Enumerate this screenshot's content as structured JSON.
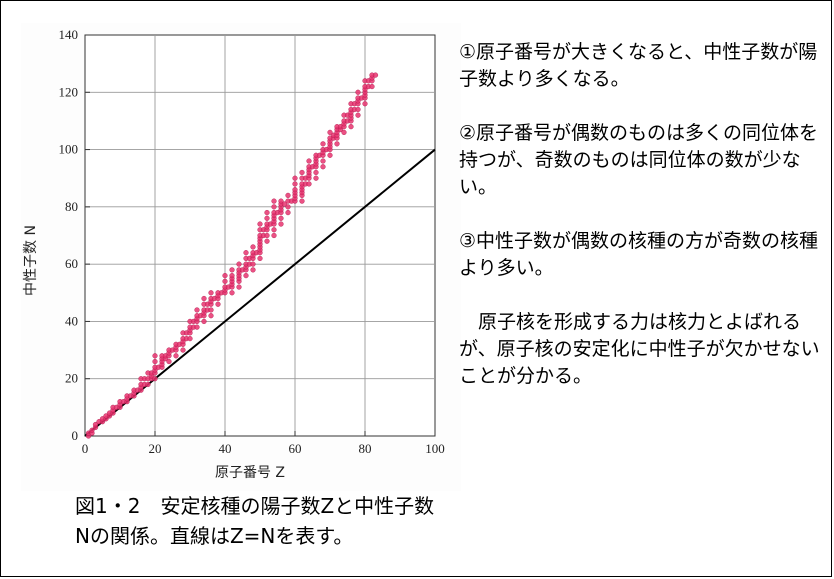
{
  "chart_data": {
    "type": "scatter",
    "xlabel": "原子番号 Z",
    "ylabel": "中性子数 N",
    "xlim": [
      0,
      100
    ],
    "ylim": [
      0,
      140
    ],
    "x_ticks": [
      0,
      20,
      40,
      60,
      80,
      100
    ],
    "y_ticks": [
      0,
      20,
      40,
      60,
      80,
      100,
      120,
      140
    ],
    "grid": true,
    "reference_line": {
      "name": "Z=N",
      "x": [
        0,
        100
      ],
      "y": [
        0,
        100
      ]
    },
    "series": [
      {
        "name": "安定核種",
        "color": "#e8326e",
        "points": [
          [
            1,
            0
          ],
          [
            1,
            1
          ],
          [
            2,
            1
          ],
          [
            2,
            2
          ],
          [
            3,
            3
          ],
          [
            3,
            4
          ],
          [
            4,
            5
          ],
          [
            5,
            5
          ],
          [
            5,
            6
          ],
          [
            6,
            6
          ],
          [
            6,
            7
          ],
          [
            7,
            7
          ],
          [
            7,
            8
          ],
          [
            8,
            8
          ],
          [
            8,
            9
          ],
          [
            8,
            10
          ],
          [
            9,
            10
          ],
          [
            10,
            10
          ],
          [
            10,
            11
          ],
          [
            10,
            12
          ],
          [
            11,
            12
          ],
          [
            12,
            12
          ],
          [
            12,
            13
          ],
          [
            12,
            14
          ],
          [
            13,
            14
          ],
          [
            14,
            14
          ],
          [
            14,
            15
          ],
          [
            14,
            16
          ],
          [
            15,
            16
          ],
          [
            16,
            16
          ],
          [
            16,
            17
          ],
          [
            16,
            18
          ],
          [
            16,
            20
          ],
          [
            17,
            18
          ],
          [
            17,
            20
          ],
          [
            18,
            18
          ],
          [
            18,
            20
          ],
          [
            18,
            22
          ],
          [
            19,
            20
          ],
          [
            19,
            21
          ],
          [
            19,
            22
          ],
          [
            20,
            20
          ],
          [
            20,
            22
          ],
          [
            20,
            23
          ],
          [
            20,
            24
          ],
          [
            20,
            26
          ],
          [
            20,
            28
          ],
          [
            21,
            24
          ],
          [
            22,
            24
          ],
          [
            22,
            25
          ],
          [
            22,
            26
          ],
          [
            22,
            27
          ],
          [
            22,
            28
          ],
          [
            23,
            27
          ],
          [
            23,
            28
          ],
          [
            24,
            26
          ],
          [
            24,
            28
          ],
          [
            24,
            29
          ],
          [
            24,
            30
          ],
          [
            25,
            30
          ],
          [
            26,
            28
          ],
          [
            26,
            30
          ],
          [
            26,
            31
          ],
          [
            26,
            32
          ],
          [
            27,
            32
          ],
          [
            28,
            30
          ],
          [
            28,
            32
          ],
          [
            28,
            33
          ],
          [
            28,
            34
          ],
          [
            28,
            36
          ],
          [
            29,
            34
          ],
          [
            29,
            36
          ],
          [
            30,
            34
          ],
          [
            30,
            36
          ],
          [
            30,
            37
          ],
          [
            30,
            38
          ],
          [
            30,
            40
          ],
          [
            31,
            38
          ],
          [
            31,
            40
          ],
          [
            32,
            38
          ],
          [
            32,
            40
          ],
          [
            32,
            41
          ],
          [
            32,
            42
          ],
          [
            32,
            44
          ],
          [
            33,
            42
          ],
          [
            34,
            40
          ],
          [
            34,
            42
          ],
          [
            34,
            43
          ],
          [
            34,
            44
          ],
          [
            34,
            46
          ],
          [
            34,
            48
          ],
          [
            35,
            44
          ],
          [
            35,
            46
          ],
          [
            36,
            42
          ],
          [
            36,
            44
          ],
          [
            36,
            46
          ],
          [
            36,
            47
          ],
          [
            36,
            48
          ],
          [
            36,
            50
          ],
          [
            37,
            48
          ],
          [
            38,
            46
          ],
          [
            38,
            48
          ],
          [
            38,
            49
          ],
          [
            38,
            50
          ],
          [
            39,
            50
          ],
          [
            40,
            50
          ],
          [
            40,
            51
          ],
          [
            40,
            52
          ],
          [
            40,
            54
          ],
          [
            40,
            56
          ],
          [
            41,
            52
          ],
          [
            42,
            50
          ],
          [
            42,
            52
          ],
          [
            42,
            53
          ],
          [
            42,
            54
          ],
          [
            42,
            55
          ],
          [
            42,
            56
          ],
          [
            42,
            58
          ],
          [
            44,
            52
          ],
          [
            44,
            54
          ],
          [
            44,
            55
          ],
          [
            44,
            56
          ],
          [
            44,
            57
          ],
          [
            44,
            58
          ],
          [
            44,
            60
          ],
          [
            45,
            58
          ],
          [
            46,
            56
          ],
          [
            46,
            58
          ],
          [
            46,
            59
          ],
          [
            46,
            60
          ],
          [
            46,
            62
          ],
          [
            46,
            64
          ],
          [
            47,
            60
          ],
          [
            47,
            62
          ],
          [
            48,
            58
          ],
          [
            48,
            60
          ],
          [
            48,
            62
          ],
          [
            48,
            63
          ],
          [
            48,
            64
          ],
          [
            48,
            66
          ],
          [
            49,
            64
          ],
          [
            50,
            62
          ],
          [
            50,
            64
          ],
          [
            50,
            65
          ],
          [
            50,
            66
          ],
          [
            50,
            67
          ],
          [
            50,
            68
          ],
          [
            50,
            69
          ],
          [
            50,
            70
          ],
          [
            50,
            72
          ],
          [
            50,
            74
          ],
          [
            51,
            70
          ],
          [
            51,
            72
          ],
          [
            52,
            68
          ],
          [
            52,
            70
          ],
          [
            52,
            72
          ],
          [
            52,
            73
          ],
          [
            52,
            74
          ],
          [
            52,
            76
          ],
          [
            52,
            78
          ],
          [
            53,
            74
          ],
          [
            54,
            70
          ],
          [
            54,
            72
          ],
          [
            54,
            74
          ],
          [
            54,
            75
          ],
          [
            54,
            76
          ],
          [
            54,
            77
          ],
          [
            54,
            78
          ],
          [
            54,
            80
          ],
          [
            54,
            82
          ],
          [
            55,
            78
          ],
          [
            56,
            74
          ],
          [
            56,
            76
          ],
          [
            56,
            78
          ],
          [
            56,
            79
          ],
          [
            56,
            80
          ],
          [
            56,
            81
          ],
          [
            56,
            82
          ],
          [
            57,
            81
          ],
          [
            58,
            78
          ],
          [
            58,
            80
          ],
          [
            58,
            82
          ],
          [
            58,
            84
          ],
          [
            59,
            82
          ],
          [
            60,
            82
          ],
          [
            60,
            83
          ],
          [
            60,
            84
          ],
          [
            60,
            85
          ],
          [
            60,
            86
          ],
          [
            60,
            88
          ],
          [
            60,
            90
          ],
          [
            62,
            82
          ],
          [
            62,
            84
          ],
          [
            62,
            85
          ],
          [
            62,
            86
          ],
          [
            62,
            87
          ],
          [
            62,
            88
          ],
          [
            62,
            90
          ],
          [
            62,
            92
          ],
          [
            63,
            88
          ],
          [
            63,
            90
          ],
          [
            64,
            88
          ],
          [
            64,
            90
          ],
          [
            64,
            91
          ],
          [
            64,
            92
          ],
          [
            64,
            93
          ],
          [
            64,
            94
          ],
          [
            64,
            96
          ],
          [
            65,
            94
          ],
          [
            66,
            90
          ],
          [
            66,
            92
          ],
          [
            66,
            94
          ],
          [
            66,
            95
          ],
          [
            66,
            96
          ],
          [
            66,
            97
          ],
          [
            66,
            98
          ],
          [
            67,
            98
          ],
          [
            68,
            94
          ],
          [
            68,
            96
          ],
          [
            68,
            98
          ],
          [
            68,
            99
          ],
          [
            68,
            100
          ],
          [
            68,
            102
          ],
          [
            69,
            100
          ],
          [
            70,
            98
          ],
          [
            70,
            100
          ],
          [
            70,
            101
          ],
          [
            70,
            102
          ],
          [
            70,
            103
          ],
          [
            70,
            104
          ],
          [
            70,
            106
          ],
          [
            71,
            104
          ],
          [
            71,
            105
          ],
          [
            72,
            102
          ],
          [
            72,
            104
          ],
          [
            72,
            105
          ],
          [
            72,
            106
          ],
          [
            72,
            107
          ],
          [
            72,
            108
          ],
          [
            73,
            107
          ],
          [
            73,
            108
          ],
          [
            74,
            106
          ],
          [
            74,
            108
          ],
          [
            74,
            109
          ],
          [
            74,
            110
          ],
          [
            74,
            112
          ],
          [
            75,
            110
          ],
          [
            75,
            112
          ],
          [
            76,
            108
          ],
          [
            76,
            110
          ],
          [
            76,
            111
          ],
          [
            76,
            112
          ],
          [
            76,
            113
          ],
          [
            76,
            114
          ],
          [
            76,
            116
          ],
          [
            77,
            114
          ],
          [
            77,
            116
          ],
          [
            78,
            112
          ],
          [
            78,
            114
          ],
          [
            78,
            116
          ],
          [
            78,
            117
          ],
          [
            78,
            118
          ],
          [
            78,
            120
          ],
          [
            79,
            118
          ],
          [
            80,
            116
          ],
          [
            80,
            118
          ],
          [
            80,
            119
          ],
          [
            80,
            120
          ],
          [
            80,
            121
          ],
          [
            80,
            122
          ],
          [
            80,
            124
          ],
          [
            81,
            122
          ],
          [
            81,
            124
          ],
          [
            82,
            122
          ],
          [
            82,
            124
          ],
          [
            82,
            125
          ],
          [
            82,
            126
          ],
          [
            83,
            126
          ]
        ]
      }
    ]
  },
  "notes": [
    "①原子番号が大きくなると、中性子数が陽子数より多くなる。",
    "②原子番号が偶数のものは多くの同位体を持つが、奇数のものは同位体の数が少ない。",
    "③中性子数が偶数の核種の方が奇数の核種より多い。",
    "　原子核を形成する力は核力とよばれるが、原子核の安定化に中性子が欠かせないことが分かる。"
  ],
  "caption": "図1・2　安定核種の陽子数Zと中性子数Nの関係。直線はZ=Nを表す。"
}
